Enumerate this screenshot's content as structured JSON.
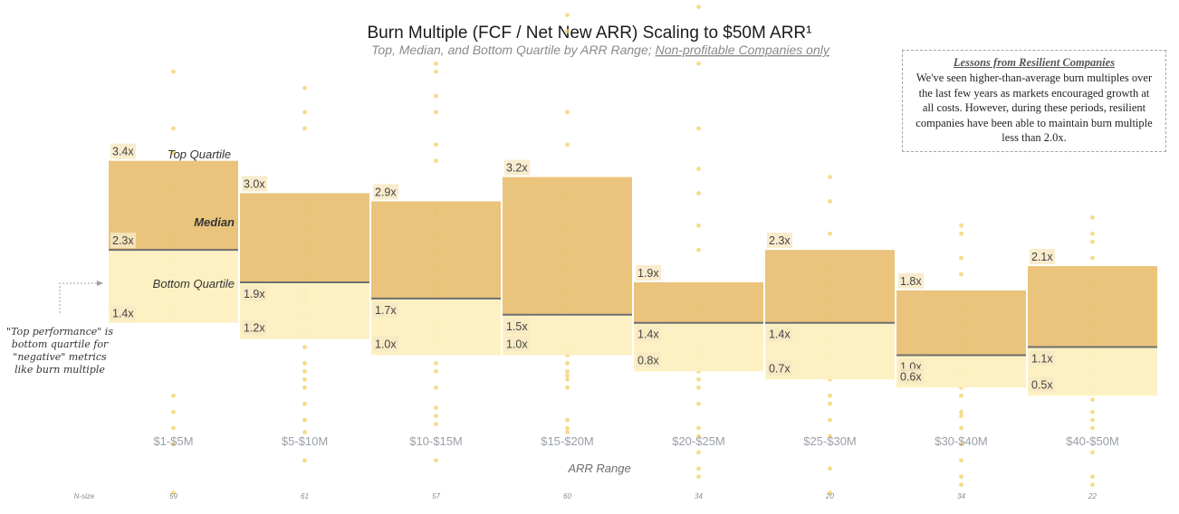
{
  "title": "Burn Multiple (FCF / Net New ARR) Scaling to $50M ARR¹",
  "subtitle": "Top, Median, and Bottom Quartile by ARR Range;",
  "subtitle_underlined": "Non-profitable Companies only",
  "quartile_labels": {
    "top": "Top Quartile",
    "median": "Median",
    "bottom": "Bottom Quartile"
  },
  "annotation": {
    "lines": [
      "\"Top performance\" is",
      "bottom quartile for",
      "\"negative\" metrics",
      "like burn multiple"
    ]
  },
  "lessons": {
    "title": "Lessons from Resilient Companies",
    "body": "We've seen higher-than-average burn multiples over the last few years as markets encouraged growth at all costs. However, during these periods, resilient companies have been able to maintain burn multiple less than 2.0x."
  },
  "colors": {
    "upper_box": "#e8c073",
    "lower_box": "#fdf0c0",
    "median_line": "#6e6e6e",
    "dots": "#f2cf66"
  },
  "chart_data": {
    "type": "box",
    "xlabel": "ARR Range",
    "ylabel": "",
    "nsize_label": "N-size",
    "categories": [
      "$1-$5M",
      "$5-$10M",
      "$10-$15M",
      "$15-$20M",
      "$20-$25M",
      "$25-$30M",
      "$30-$40M",
      "$40-$50M"
    ],
    "n_size": [
      "59",
      "61",
      "57",
      "60",
      "34",
      "20",
      "34",
      "22"
    ],
    "top_quartile": [
      3.4,
      3.0,
      2.9,
      3.2,
      1.9,
      2.3,
      1.8,
      2.1
    ],
    "median": [
      2.3,
      1.9,
      1.7,
      1.5,
      1.4,
      1.4,
      1.0,
      1.1
    ],
    "bottom_quartile": [
      1.4,
      1.2,
      1.0,
      1.0,
      0.8,
      0.7,
      0.6,
      0.5
    ],
    "top_labels": [
      "3.4x",
      "3.0x",
      "2.9x",
      "3.2x",
      "1.9x",
      "2.3x",
      "1.8x",
      "2.1x"
    ],
    "median_labels": [
      "2.3x",
      "1.9x",
      "1.7x",
      "1.5x",
      "1.4x",
      "1.4x",
      "1.0x",
      "1.1x"
    ],
    "bottom_labels": [
      "1.4x",
      "1.2x",
      "1.0x",
      "1.0x",
      "0.8x",
      "0.7x",
      "0.6x",
      "0.5x"
    ],
    "points": [
      [
        4.5,
        3.8,
        3.5,
        3.1,
        2.5,
        2.4,
        2.2,
        2.0,
        1.9,
        1.85,
        1.8,
        1.6,
        1.45,
        0.5,
        0.3,
        0.1,
        -0.1,
        -0.7
      ],
      [
        4.3,
        4.0,
        3.8,
        2.9,
        2.8,
        2.6,
        2.4,
        2.3,
        2.0,
        1.9,
        1.8,
        1.75,
        1.7,
        1.65,
        1.5,
        1.3,
        1.1,
        0.9,
        0.8,
        0.7,
        0.6,
        0.4,
        0.2,
        0.05,
        -0.3
      ],
      [
        4.6,
        4.5,
        4.2,
        4.0,
        3.6,
        3.4,
        2.8,
        2.75,
        2.5,
        2.3,
        2.1,
        1.9,
        1.8,
        1.7,
        1.4,
        1.3,
        1.2,
        0.9,
        0.8,
        0.6,
        0.35,
        0.25,
        0.15,
        -0.3
      ],
      [
        5.2,
        5.0,
        4.0,
        3.6,
        3.0,
        2.6,
        2.3,
        2.1,
        1.8,
        1.6,
        1.45,
        1.1,
        1.0,
        0.9,
        0.8,
        0.75,
        0.7,
        0.6,
        0.2,
        0.1,
        0.05
      ],
      [
        5.3,
        4.6,
        3.8,
        3.3,
        3.0,
        2.6,
        2.3,
        1.6,
        1.4,
        1.1,
        1.0,
        0.8,
        0.7,
        0.6,
        0.4,
        0.1,
        0.0,
        -0.2,
        -0.4,
        -0.5
      ],
      [
        3.2,
        2.9,
        2.5,
        2.1,
        1.9,
        1.7,
        1.5,
        1.2,
        1.0,
        0.7,
        0.5,
        0.4,
        0.2,
        0.0,
        -0.4,
        -0.7
      ],
      [
        2.6,
        2.5,
        2.2,
        2.0,
        1.6,
        1.4,
        1.2,
        1.1,
        0.8,
        0.6,
        0.5,
        0.3,
        0.25,
        0.1,
        -0.1,
        -0.3,
        -0.5,
        -0.6
      ],
      [
        2.7,
        2.5,
        2.4,
        2.2,
        1.9,
        1.6,
        1.4,
        1.2,
        1.0,
        0.8,
        0.6,
        0.45,
        0.3,
        0.2,
        0.1,
        -0.2,
        -0.5,
        -0.6
      ]
    ]
  }
}
